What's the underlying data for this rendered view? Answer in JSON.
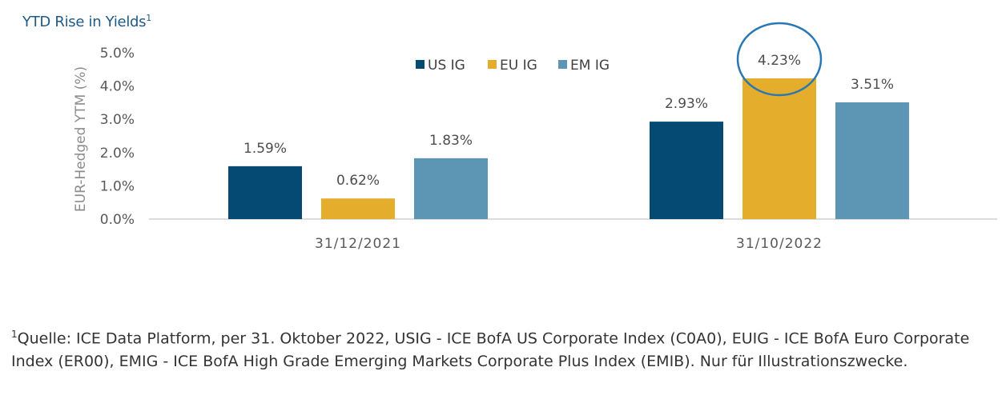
{
  "title": {
    "text": "YTD Rise in Yields",
    "sup": "1"
  },
  "colors": {
    "US IG": "#044a72",
    "EU IG": "#e4ad2b",
    "EM IG": "#5d95b4",
    "highlight": "#2a77b5"
  },
  "chart_data": {
    "type": "bar",
    "categories": [
      "31/12/2021",
      "31/10/2022"
    ],
    "series": [
      {
        "name": "US IG",
        "values": [
          1.59,
          2.93
        ],
        "labels": [
          "1.59%",
          "2.93%"
        ]
      },
      {
        "name": "EU IG",
        "values": [
          0.62,
          4.23
        ],
        "labels": [
          "0.62%",
          "4.23%"
        ]
      },
      {
        "name": "EM IG",
        "values": [
          1.83,
          3.51
        ],
        "labels": [
          "1.83%",
          "3.51%"
        ]
      }
    ],
    "ylabel": "EUR-Hedged YTM (%)",
    "ylim": [
      0,
      5
    ],
    "yticks": [
      0,
      1,
      2,
      3,
      4,
      5
    ],
    "ytick_labels": [
      "0.0%",
      "1.0%",
      "2.0%",
      "3.0%",
      "4.0%",
      "5.0%"
    ],
    "legend_position": "top-center",
    "grid": false,
    "highlighted": {
      "series": "EU IG",
      "category": "31/10/2022"
    }
  },
  "footnote": {
    "sup": "1",
    "text": "Quelle: ICE Data Platform, per 31. Oktober 2022, USIG - ICE BofA US Corporate Index (C0A0), EUIG - ICE BofA Euro Corporate Index (ER00), EMIG - ICE BofA High Grade Emerging Markets Corporate Plus Index (EMIB). Nur für Illustrationszwecke."
  }
}
